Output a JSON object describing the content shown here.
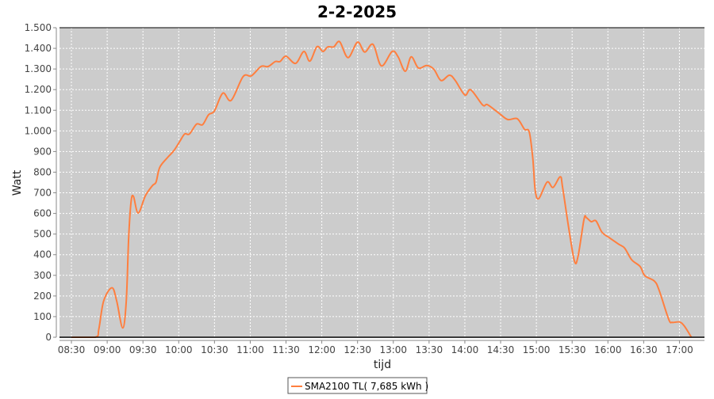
{
  "chart_data": {
    "type": "line",
    "title": "2-2-2025",
    "xlabel": "tijd",
    "ylabel": "Watt",
    "xlim": [
      "08:20",
      "17:21"
    ],
    "ylim": [
      0,
      1500
    ],
    "grid": true,
    "legend_position": "bottom",
    "x_ticks": [
      "08:30",
      "09:00",
      "09:30",
      "10:00",
      "10:30",
      "11:00",
      "11:30",
      "12:00",
      "12:30",
      "13:00",
      "13:30",
      "14:00",
      "14:30",
      "15:00",
      "15:30",
      "16:00",
      "16:30",
      "17:00"
    ],
    "y_ticks": [
      {
        "value": 0,
        "label": "0"
      },
      {
        "value": 100,
        "label": "100"
      },
      {
        "value": 200,
        "label": "200"
      },
      {
        "value": 300,
        "label": "300"
      },
      {
        "value": 400,
        "label": "400"
      },
      {
        "value": 500,
        "label": "500"
      },
      {
        "value": 600,
        "label": "600"
      },
      {
        "value": 700,
        "label": "700"
      },
      {
        "value": 800,
        "label": "800"
      },
      {
        "value": 900,
        "label": "900"
      },
      {
        "value": 1000,
        "label": "1.000"
      },
      {
        "value": 1100,
        "label": "1.100"
      },
      {
        "value": 1200,
        "label": "1.200"
      },
      {
        "value": 1300,
        "label": "1.300"
      },
      {
        "value": 1400,
        "label": "1.400"
      },
      {
        "value": 1500,
        "label": "1.500"
      }
    ],
    "series": [
      {
        "name": "SMA2100 TL( 7,685 kWh )",
        "color": "#ff7f3f",
        "points": [
          [
            "08:30",
            0
          ],
          [
            "08:50",
            0
          ],
          [
            "08:53",
            40
          ],
          [
            "08:57",
            175
          ],
          [
            "09:04",
            240
          ],
          [
            "09:08",
            175
          ],
          [
            "09:13",
            45
          ],
          [
            "09:16",
            175
          ],
          [
            "09:18",
            480
          ],
          [
            "09:20",
            655
          ],
          [
            "09:22",
            683
          ],
          [
            "09:26",
            602
          ],
          [
            "09:32",
            685
          ],
          [
            "09:38",
            735
          ],
          [
            "09:41",
            752
          ],
          [
            "09:44",
            822
          ],
          [
            "09:50",
            867
          ],
          [
            "09:56",
            905
          ],
          [
            "10:01",
            950
          ],
          [
            "10:05",
            985
          ],
          [
            "10:09",
            985
          ],
          [
            "10:15",
            1033
          ],
          [
            "10:20",
            1030
          ],
          [
            "10:25",
            1078
          ],
          [
            "10:30",
            1097
          ],
          [
            "10:37",
            1183
          ],
          [
            "10:44",
            1148
          ],
          [
            "10:54",
            1263
          ],
          [
            "11:01",
            1267
          ],
          [
            "11:09",
            1312
          ],
          [
            "11:15",
            1312
          ],
          [
            "11:21",
            1336
          ],
          [
            "11:25",
            1336
          ],
          [
            "11:30",
            1362
          ],
          [
            "11:38",
            1327
          ],
          [
            "11:45",
            1385
          ],
          [
            "11:50",
            1338
          ],
          [
            "11:56",
            1408
          ],
          [
            "12:01",
            1385
          ],
          [
            "12:05",
            1407
          ],
          [
            "12:10",
            1407
          ],
          [
            "12:15",
            1432
          ],
          [
            "12:22",
            1355
          ],
          [
            "12:30",
            1430
          ],
          [
            "12:36",
            1382
          ],
          [
            "12:43",
            1419
          ],
          [
            "12:50",
            1315
          ],
          [
            "12:59",
            1385
          ],
          [
            "13:04",
            1359
          ],
          [
            "13:10",
            1289
          ],
          [
            "13:15",
            1359
          ],
          [
            "13:21",
            1305
          ],
          [
            "13:28",
            1317
          ],
          [
            "13:34",
            1299
          ],
          [
            "13:40",
            1244
          ],
          [
            "13:47",
            1270
          ],
          [
            "13:52",
            1244
          ],
          [
            "14:00",
            1174
          ],
          [
            "14:05",
            1199
          ],
          [
            "14:15",
            1125
          ],
          [
            "14:19",
            1127
          ],
          [
            "14:29",
            1084
          ],
          [
            "14:36",
            1055
          ],
          [
            "14:44",
            1059
          ],
          [
            "14:50",
            1008
          ],
          [
            "14:54",
            995
          ],
          [
            "14:57",
            867
          ],
          [
            "14:59",
            713
          ],
          [
            "15:02",
            672
          ],
          [
            "15:09",
            752
          ],
          [
            "15:14",
            726
          ],
          [
            "15:20",
            778
          ],
          [
            "15:22",
            726
          ],
          [
            "15:27",
            534
          ],
          [
            "15:32",
            368
          ],
          [
            "15:35",
            394
          ],
          [
            "15:40",
            573
          ],
          [
            "15:42",
            579
          ],
          [
            "15:46",
            560
          ],
          [
            "15:50",
            564
          ],
          [
            "15:55",
            509
          ],
          [
            "16:01",
            483
          ],
          [
            "16:09",
            451
          ],
          [
            "16:14",
            432
          ],
          [
            "16:20",
            375
          ],
          [
            "16:27",
            343
          ],
          [
            "16:31",
            298
          ],
          [
            "16:39",
            272
          ],
          [
            "16:43",
            227
          ],
          [
            "16:51",
            87
          ],
          [
            "16:54",
            72
          ],
          [
            "17:00",
            74
          ],
          [
            "17:04",
            55
          ],
          [
            "17:10",
            0
          ]
        ]
      }
    ]
  }
}
